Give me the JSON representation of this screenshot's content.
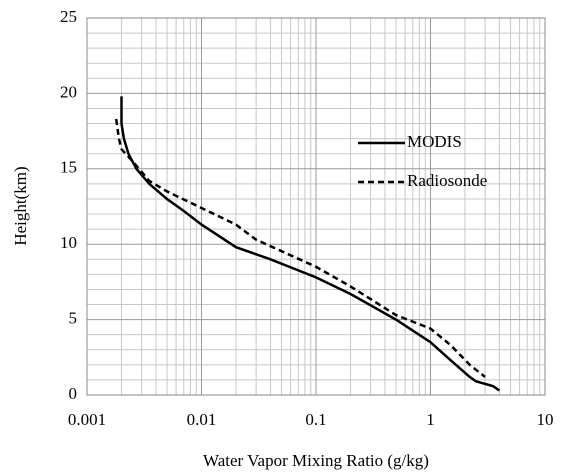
{
  "chart_data": {
    "type": "line",
    "xlabel": "Water Vapor Mixing Ratio (g/kg)",
    "ylabel": "Height(km)",
    "xscale": "log",
    "xlim": [
      0.001,
      10
    ],
    "xticks": [
      0.001,
      0.01,
      0.1,
      1,
      10
    ],
    "ylim": [
      0,
      25
    ],
    "yticks": [
      0,
      5,
      10,
      15,
      20,
      25
    ],
    "grid": true,
    "legend": "right",
    "series": [
      {
        "name": "MODIS",
        "color": "#000000",
        "dash": "solid",
        "x": [
          0.002,
          0.002,
          0.0021,
          0.0023,
          0.0027,
          0.0035,
          0.005,
          0.007,
          0.01,
          0.02,
          0.04,
          0.1,
          0.2,
          0.5,
          1,
          1.5,
          2.2,
          2.5,
          3.5,
          4
        ],
        "values": [
          19.8,
          18,
          17,
          16,
          15,
          14,
          13,
          12.2,
          11.3,
          9.8,
          9,
          7.8,
          6.7,
          5,
          3.5,
          2.3,
          1.2,
          0.9,
          0.6,
          0.3
        ]
      },
      {
        "name": "Radiosonde",
        "color": "#000000",
        "dash": "dashed",
        "x": [
          0.0018,
          0.0019,
          0.002,
          0.0025,
          0.0035,
          0.005,
          0.01,
          0.02,
          0.03,
          0.1,
          0.2,
          0.5,
          1,
          1.5,
          2.2,
          3
        ],
        "values": [
          18.3,
          17,
          16.3,
          15.5,
          14.2,
          13.5,
          12.4,
          11.3,
          10.3,
          8.5,
          7.2,
          5.3,
          4.4,
          3.3,
          2,
          1.2
        ]
      }
    ]
  }
}
